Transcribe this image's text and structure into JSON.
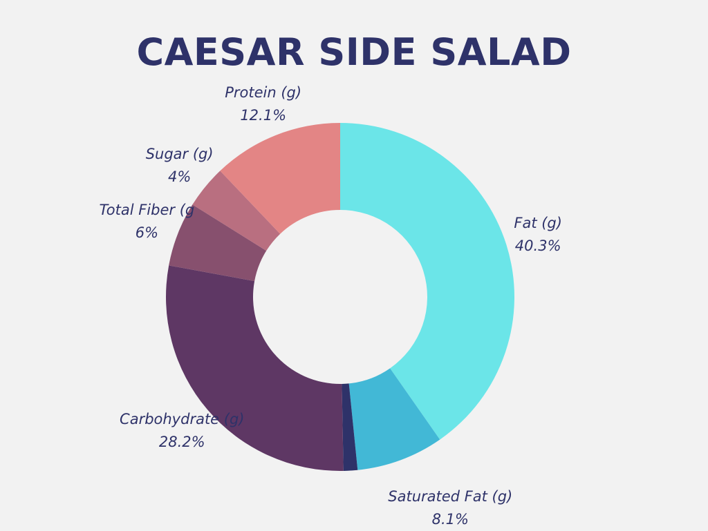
{
  "chart_data": {
    "type": "pie",
    "donut": true,
    "title": "CAESAR SIDE SALAD",
    "slices": [
      {
        "label": "Fat (g)",
        "value": 40.3,
        "value_label": "40.3%",
        "color": "#6be5e8"
      },
      {
        "label": "Saturated Fat (g)",
        "value": 8.1,
        "value_label": "8.1%",
        "color": "#42b8d6"
      },
      {
        "label": "",
        "value": 1.3,
        "value_label": "",
        "color": "#2e3269"
      },
      {
        "label": "Carbohydrate (g)",
        "value": 28.2,
        "value_label": "28.2%",
        "color": "#5e3764"
      },
      {
        "label": "Total Fiber (g",
        "value": 6,
        "value_label": "6%",
        "color": "#87506e"
      },
      {
        "label": "Sugar (g)",
        "value": 4,
        "value_label": "4%",
        "color": "#b96f80"
      },
      {
        "label": "Protein (g)",
        "value": 12.1,
        "value_label": "12.1%",
        "color": "#e38585"
      }
    ],
    "start_angle": "top",
    "direction": "clockwise",
    "legend": "none"
  }
}
